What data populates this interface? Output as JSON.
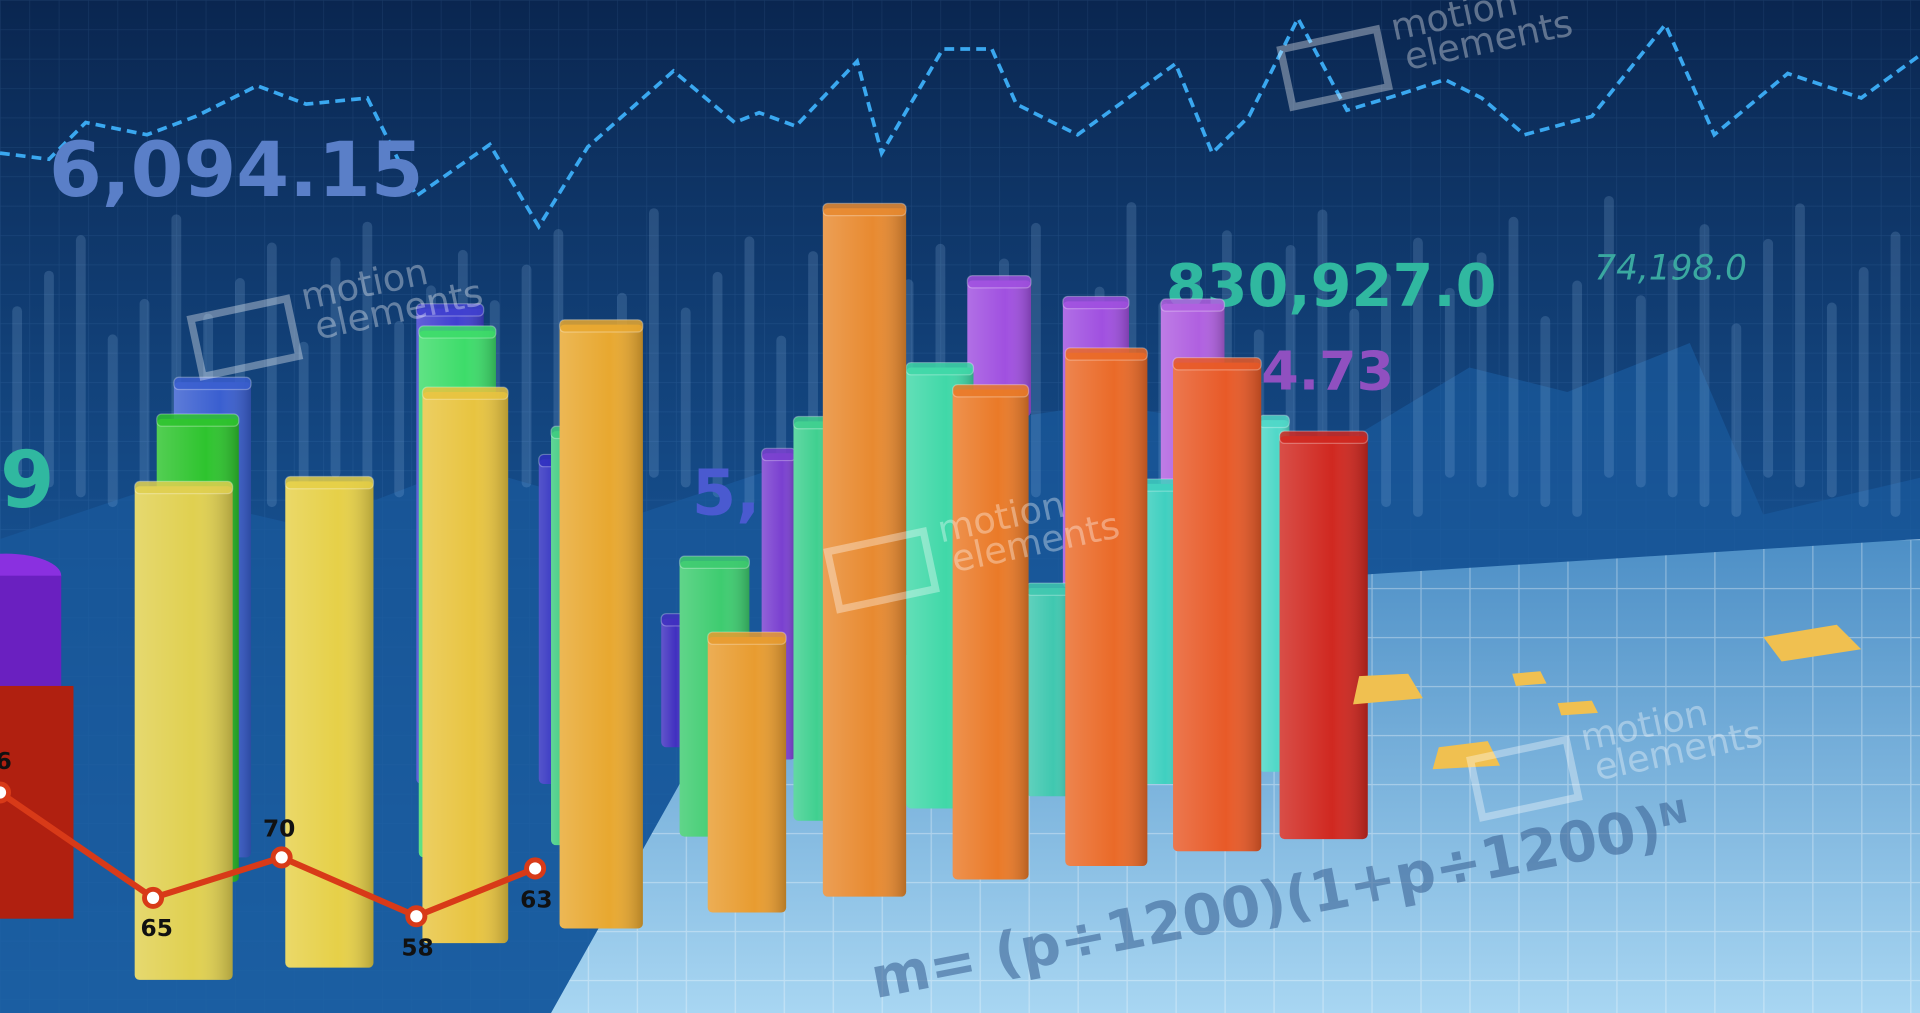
{
  "background_numbers": [
    "6,094.15",
    "830,927.0",
    "74,198.0",
    "4.73",
    "5,9",
    "9"
  ],
  "line_labels": [
    "6",
    65,
    70,
    58,
    63
  ],
  "formula": "m= (p÷1200)(1+p÷1200)ᴺ",
  "watermark": {
    "line1": "motion",
    "line2": "elements"
  }
}
